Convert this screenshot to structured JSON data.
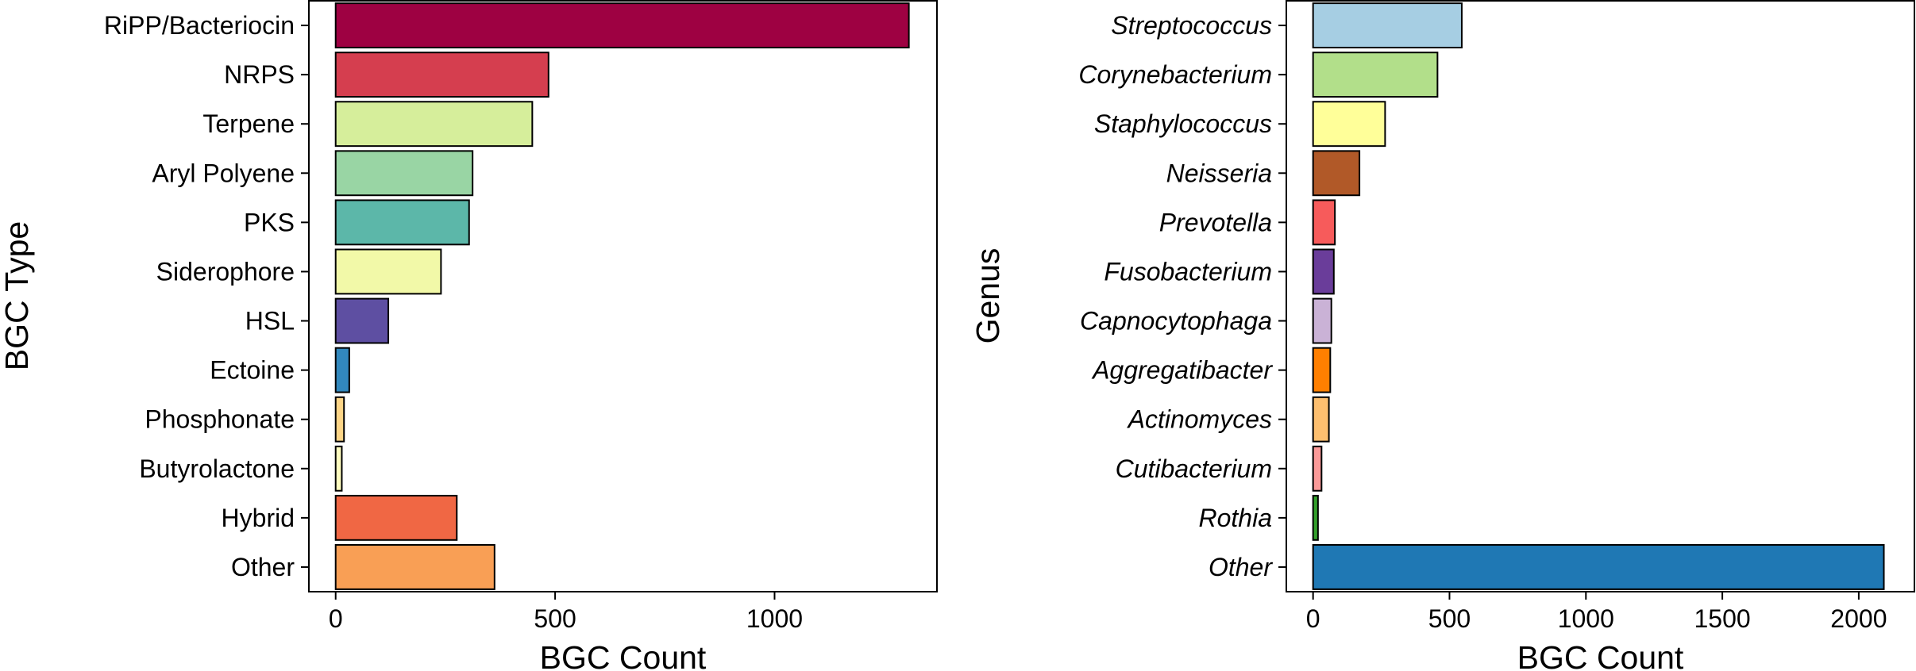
{
  "chart_data": [
    {
      "type": "barh",
      "ylabel": "BGC Type",
      "xlabel": "BGC Count",
      "categories": [
        "RiPP/Bacteriocin",
        "NRPS",
        "Terpene",
        "Aryl Polyene",
        "PKS",
        "Siderophore",
        "HSL",
        "Ectoine",
        "Phosphonate",
        "Butyrolactone",
        "Hybrid",
        "Other"
      ],
      "values": [
        1306,
        485,
        448,
        312,
        304,
        240,
        120,
        31,
        19,
        14,
        276,
        362
      ],
      "colors": [
        "#9e0142",
        "#d53e4f",
        "#d6ee9b",
        "#99d5a4",
        "#5cb7a9",
        "#f2f9a8",
        "#5e4fa2",
        "#3288bd",
        "#fdd587",
        "#fefcbf",
        "#f06744",
        "#f99f55"
      ],
      "xlim": [
        -61,
        1370
      ],
      "xticks": [
        0,
        500,
        1000
      ],
      "tick_label_style": "normal"
    },
    {
      "type": "barh",
      "ylabel": "Genus",
      "xlabel": "BGC Count",
      "categories": [
        "Streptococcus",
        "Corynebacterium",
        "Staphylococcus",
        "Neisseria",
        "Prevotella",
        "Fusobacterium",
        "Capnocytophaga",
        "Aggregatibacter",
        "Actinomyces",
        "Cutibacterium",
        "Rothia",
        "Other"
      ],
      "values": [
        545,
        456,
        264,
        170,
        80,
        76,
        67,
        63,
        58,
        31,
        18,
        2092
      ],
      "colors": [
        "#a6cee3",
        "#b2df8a",
        "#ffff99",
        "#b15928",
        "#f75b5b",
        "#6a3d9a",
        "#cab2d6",
        "#ff7f00",
        "#fdbf6f",
        "#fb9a99",
        "#33a02c",
        "#1f78b4"
      ],
      "xlim": [
        -98,
        2204
      ],
      "xticks": [
        0,
        500,
        1000,
        1500,
        2000
      ],
      "tick_label_style": "italic"
    }
  ]
}
